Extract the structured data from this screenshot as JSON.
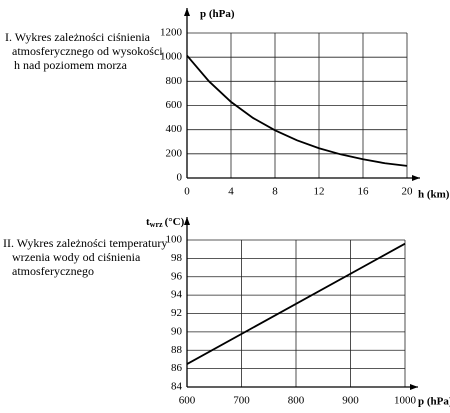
{
  "chart_data": [
    {
      "type": "line",
      "description": [
        "I. Wykres zależności ciśnienia",
        "atmosferycznego od wysokości",
        "h nad poziomem morza"
      ],
      "ylabel": "p (hPa)",
      "xlabel": "h (km)",
      "x": [
        0,
        2,
        4,
        6,
        8,
        10,
        12,
        14,
        16,
        18,
        20
      ],
      "values": [
        1013,
        800,
        630,
        497,
        395,
        312,
        246,
        195,
        155,
        122,
        100
      ],
      "color": "#000000",
      "xlim": [
        0,
        20
      ],
      "xticks": [
        0,
        4,
        8,
        12,
        16,
        20
      ],
      "ylim": [
        0,
        1200
      ],
      "yticks": [
        0,
        200,
        400,
        600,
        800,
        1000,
        1200
      ],
      "grid": true
    },
    {
      "type": "line",
      "description": [
        "II. Wykres zależności temperatury",
        "wrzenia wody od ciśnienia",
        "atmosferycznego"
      ],
      "ylabel": "t",
      "ylabel_sub": "wrz",
      "ylabel_unit": "(°C)",
      "xlabel": "p (hPa)",
      "x": [
        600,
        1000
      ],
      "values": [
        86.5,
        99.6
      ],
      "color": "#000000",
      "xlim": [
        600,
        1000
      ],
      "xticks": [
        600,
        700,
        800,
        900,
        1000
      ],
      "ylim": [
        84,
        100
      ],
      "yticks": [
        84,
        86,
        88,
        90,
        92,
        94,
        96,
        98,
        100
      ],
      "grid": true
    }
  ]
}
